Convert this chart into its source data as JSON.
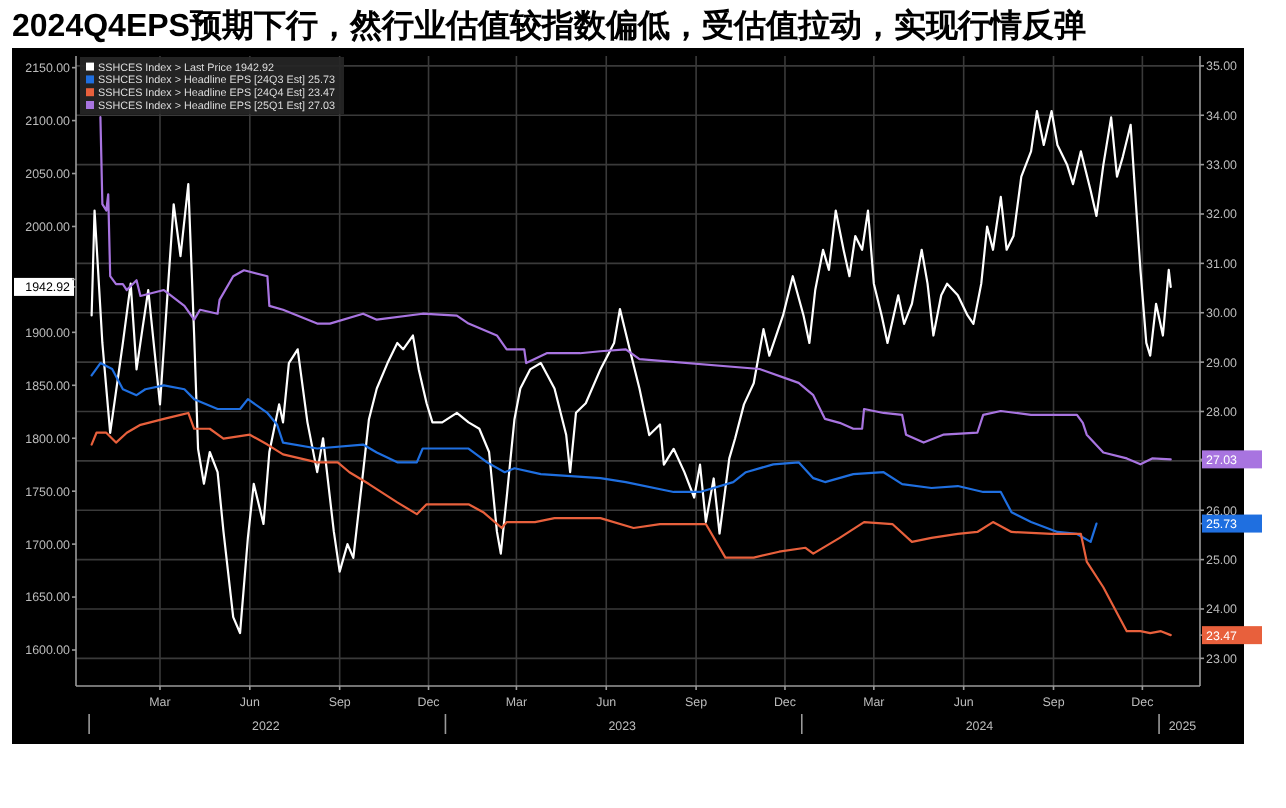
{
  "chart_data": {
    "type": "line",
    "title": "2024Q4EPS预期下行，然行业估值较指数偏低，受估值拉动，实现行情反弹",
    "xlim": [
      "2021-12-19",
      "2025-02-12"
    ],
    "xticks": [
      {
        "value": "2022-03-15",
        "label": "Mar"
      },
      {
        "value": "2022-06-15",
        "label": "Jun"
      },
      {
        "value": "2022-09-15",
        "label": "Sep"
      },
      {
        "value": "2022-12-15",
        "label": "Dec"
      },
      {
        "value": "2023-03-15",
        "label": "Mar"
      },
      {
        "value": "2023-06-15",
        "label": "Jun"
      },
      {
        "value": "2023-09-15",
        "label": "Sep"
      },
      {
        "value": "2023-12-15",
        "label": "Dec"
      },
      {
        "value": "2024-03-15",
        "label": "Mar"
      },
      {
        "value": "2024-06-15",
        "label": "Jun"
      },
      {
        "value": "2024-09-15",
        "label": "Sep"
      },
      {
        "value": "2024-12-15",
        "label": "Dec"
      }
    ],
    "x2lim": [
      "2021-10-14",
      "2025-03-29"
    ],
    "x2ticks": [
      {
        "value": "2022-07-01",
        "label": "2022"
      },
      {
        "value": "2023-07-01",
        "label": "2023"
      },
      {
        "value": "2024-07-01",
        "label": "2024"
      },
      {
        "value": "2025-01-25",
        "label": "2025"
      }
    ],
    "ylim": [
      1566,
      2161
    ],
    "yticks": [
      {
        "value": 1600,
        "label": "1600.00"
      },
      {
        "value": 1650,
        "label": "1650.00"
      },
      {
        "value": 1700,
        "label": "1700.00"
      },
      {
        "value": 1750,
        "label": "1750.00"
      },
      {
        "value": 1800,
        "label": "1800.00"
      },
      {
        "value": 1850,
        "label": "1850.00"
      },
      {
        "value": 1900,
        "label": "1900.00"
      },
      {
        "value": 1942.92,
        "label": "1942.92"
      },
      {
        "value": 1950,
        "label": null
      },
      {
        "value": 2000,
        "label": "2000.00"
      },
      {
        "value": 2050,
        "label": "2050.00"
      },
      {
        "value": 2100,
        "label": "2100.00"
      },
      {
        "value": 2150,
        "label": "2150.00"
      }
    ],
    "y2lim": [
      22.44,
      35.2
    ],
    "y2ticks": [
      {
        "value": 23,
        "label": "23.00"
      },
      {
        "value": 23.47,
        "label": "23.47"
      },
      {
        "value": 24,
        "label": "24.00"
      },
      {
        "value": 25,
        "label": "25.00"
      },
      {
        "value": 25.73,
        "label": "25.73"
      },
      {
        "value": 26,
        "label": "26.00"
      },
      {
        "value": 27,
        "label": null
      },
      {
        "value": 27.03,
        "label": "27.03"
      },
      {
        "value": 28,
        "label": "28.00"
      },
      {
        "value": 29,
        "label": "29.00"
      },
      {
        "value": 30,
        "label": "30.00"
      },
      {
        "value": 31,
        "label": "31.00"
      },
      {
        "value": 32,
        "label": "32.00"
      },
      {
        "value": 33,
        "label": "33.00"
      },
      {
        "value": 34,
        "label": "34.00"
      },
      {
        "value": 35,
        "label": "35.00"
      }
    ],
    "grid": true,
    "legend": "top left",
    "series": [
      {
        "name": "SSHCES Index > Last Price 1942.92",
        "color": "#ffffff",
        "axis": "y",
        "x": [
          "2022-01-04",
          "2022-01-07",
          "2022-01-15",
          "2022-01-23",
          "2022-02-05",
          "2022-02-13",
          "2022-02-19",
          "2022-02-25",
          "2022-03-03",
          "2022-03-15",
          "2022-03-29",
          "2022-04-05",
          "2022-04-13",
          "2022-04-19",
          "2022-04-23",
          "2022-04-29",
          "2022-05-05",
          "2022-05-13",
          "2022-05-19",
          "2022-05-29",
          "2022-06-05",
          "2022-06-13",
          "2022-06-19",
          "2022-06-29",
          "2022-07-05",
          "2022-07-15",
          "2022-07-19",
          "2022-07-25",
          "2022-08-03",
          "2022-08-13",
          "2022-08-23",
          "2022-08-29",
          "2022-09-09",
          "2022-09-15",
          "2022-09-23",
          "2022-09-29",
          "2022-10-09",
          "2022-10-15",
          "2022-10-23",
          "2022-11-03",
          "2022-11-13",
          "2022-11-19",
          "2022-11-29",
          "2022-12-05",
          "2022-12-13",
          "2022-12-19",
          "2022-12-29",
          "2023-01-13",
          "2023-01-25",
          "2023-02-05",
          "2023-02-15",
          "2023-02-23",
          "2023-02-27",
          "2023-03-05",
          "2023-03-13",
          "2023-03-19",
          "2023-03-29",
          "2023-04-09",
          "2023-04-23",
          "2023-05-05",
          "2023-05-09",
          "2023-05-15",
          "2023-05-25",
          "2023-06-09",
          "2023-06-23",
          "2023-06-29",
          "2023-07-09",
          "2023-07-19",
          "2023-07-29",
          "2023-08-09",
          "2023-08-13",
          "2023-08-23",
          "2023-09-03",
          "2023-09-13",
          "2023-09-19",
          "2023-09-25",
          "2023-10-03",
          "2023-10-09",
          "2023-10-19",
          "2023-10-25",
          "2023-11-03",
          "2023-11-13",
          "2023-11-23",
          "2023-11-29",
          "2023-12-13",
          "2023-12-23",
          "2024-01-03",
          "2024-01-09",
          "2024-01-15",
          "2024-01-23",
          "2024-01-29",
          "2024-02-05",
          "2024-02-13",
          "2024-02-19",
          "2024-02-25",
          "2024-03-03",
          "2024-03-09",
          "2024-03-15",
          "2024-03-23",
          "2024-03-29",
          "2024-04-09",
          "2024-04-15",
          "2024-04-23",
          "2024-05-03",
          "2024-05-09",
          "2024-05-15",
          "2024-05-23",
          "2024-05-29",
          "2024-06-09",
          "2024-06-19",
          "2024-06-25",
          "2024-07-03",
          "2024-07-09",
          "2024-07-15",
          "2024-07-23",
          "2024-07-29",
          "2024-08-05",
          "2024-08-13",
          "2024-08-23",
          "2024-08-29",
          "2024-09-05",
          "2024-09-13",
          "2024-09-19",
          "2024-09-29",
          "2024-10-05",
          "2024-10-13",
          "2024-10-23",
          "2024-10-29",
          "2024-11-05",
          "2024-11-13",
          "2024-11-19",
          "2024-11-25",
          "2024-12-03",
          "2024-12-07",
          "2024-12-13",
          "2024-12-19",
          "2024-12-23",
          "2024-12-29",
          "2025-01-05",
          "2025-01-11",
          "2025-01-13"
        ],
        "values": [
          1916,
          2015,
          1890,
          1805,
          1890,
          1946,
          1865,
          1903,
          1940,
          1832,
          2021,
          1972,
          2040,
          1897,
          1790,
          1757,
          1787,
          1768,
          1712,
          1631,
          1616,
          1706,
          1757,
          1719,
          1787,
          1832,
          1815,
          1871,
          1884,
          1815,
          1768,
          1800,
          1712,
          1674,
          1700,
          1687,
          1768,
          1818,
          1847,
          1871,
          1890,
          1884,
          1897,
          1865,
          1833,
          1815,
          1815,
          1824,
          1815,
          1809,
          1787,
          1712,
          1691,
          1744,
          1818,
          1847,
          1865,
          1871,
          1847,
          1803,
          1768,
          1824,
          1833,
          1865,
          1890,
          1922,
          1884,
          1847,
          1803,
          1813,
          1775,
          1790,
          1768,
          1744,
          1775,
          1721,
          1762,
          1710,
          1781,
          1800,
          1832,
          1852,
          1903,
          1878,
          1916,
          1953,
          1916,
          1890,
          1940,
          1978,
          1959,
          2015,
          1978,
          1953,
          1991,
          1978,
          2015,
          1946,
          1916,
          1890,
          1935,
          1908,
          1927,
          1978,
          1946,
          1897,
          1935,
          1946,
          1935,
          1916,
          1908,
          1946,
          2000,
          1978,
          2028,
          1978,
          1991,
          2047,
          2071,
          2109,
          2077,
          2109,
          2077,
          2058,
          2040,
          2071,
          2034,
          2010,
          2058,
          2103,
          2047,
          2066,
          2096,
          2040,
          1959,
          1890,
          1878,
          1927,
          1897,
          1959,
          1942.92
        ]
      },
      {
        "name": "SSHCES Index > Headline EPS [24Q3 Est] 25.73",
        "color": "#1f6fe0",
        "axis": "y2",
        "x": [
          "2022-01-04",
          "2022-01-13",
          "2022-01-25",
          "2022-02-05",
          "2022-02-19",
          "2022-02-28",
          "2022-03-19",
          "2022-04-09",
          "2022-04-19",
          "2022-05-13",
          "2022-06-05",
          "2022-06-13",
          "2022-07-03",
          "2022-07-13",
          "2022-07-19",
          "2022-08-23",
          "2022-10-09",
          "2022-10-23",
          "2022-11-13",
          "2022-12-03",
          "2022-12-09",
          "2023-01-25",
          "2023-02-13",
          "2023-03-03",
          "2023-03-13",
          "2023-04-09",
          "2023-06-09",
          "2023-07-05",
          "2023-08-23",
          "2023-09-19",
          "2023-10-23",
          "2023-11-05",
          "2023-12-03",
          "2023-12-29",
          "2024-01-13",
          "2024-01-25",
          "2024-02-23",
          "2024-03-25",
          "2024-04-13",
          "2024-05-13",
          "2024-06-09",
          "2024-07-05",
          "2024-07-23",
          "2024-08-03",
          "2024-08-23",
          "2024-09-19",
          "2024-10-09",
          "2024-10-23",
          "2024-10-29"
        ],
        "values": [
          28.73,
          28.98,
          28.86,
          28.45,
          28.33,
          28.45,
          28.53,
          28.45,
          28.25,
          28.05,
          28.05,
          28.25,
          27.97,
          27.73,
          27.37,
          27.25,
          27.33,
          27.17,
          26.97,
          26.97,
          27.25,
          27.25,
          26.97,
          26.77,
          26.85,
          26.73,
          26.65,
          26.57,
          26.37,
          26.37,
          26.57,
          26.77,
          26.93,
          26.97,
          26.65,
          26.57,
          26.73,
          26.77,
          26.53,
          26.45,
          26.49,
          26.37,
          26.37,
          25.96,
          25.76,
          25.56,
          25.52,
          25.36,
          25.73
        ]
      },
      {
        "name": "SSHCES Index > Headline EPS [24Q4 Est] 23.47",
        "color": "#e8603c",
        "axis": "y2",
        "x": [
          "2022-01-04",
          "2022-01-09",
          "2022-01-19",
          "2022-01-29",
          "2022-02-09",
          "2022-02-23",
          "2022-03-19",
          "2022-04-05",
          "2022-04-13",
          "2022-04-19",
          "2022-05-05",
          "2022-05-19",
          "2022-06-15",
          "2022-07-03",
          "2022-07-19",
          "2022-08-23",
          "2022-09-13",
          "2022-09-25",
          "2022-10-15",
          "2022-11-13",
          "2022-12-03",
          "2022-12-13",
          "2023-01-25",
          "2023-02-09",
          "2023-02-28",
          "2023-03-05",
          "2023-04-03",
          "2023-04-23",
          "2023-06-03",
          "2023-06-09",
          "2023-07-13",
          "2023-08-09",
          "2023-09-25",
          "2023-10-15",
          "2023-11-13",
          "2023-12-09",
          "2024-01-05",
          "2024-01-13",
          "2024-02-09",
          "2024-03-05",
          "2024-04-03",
          "2024-04-23",
          "2024-05-13",
          "2024-06-09",
          "2024-06-29",
          "2024-07-15",
          "2024-08-03",
          "2024-09-13",
          "2024-10-13",
          "2024-10-19",
          "2024-11-05",
          "2024-11-19",
          "2024-11-29",
          "2024-12-13",
          "2024-12-23",
          "2025-01-03",
          "2025-01-13"
        ],
        "values": [
          27.33,
          27.57,
          27.57,
          27.37,
          27.57,
          27.73,
          27.85,
          27.93,
          27.97,
          27.65,
          27.65,
          27.45,
          27.53,
          27.33,
          27.13,
          26.97,
          26.97,
          26.77,
          26.53,
          26.16,
          25.92,
          26.12,
          26.12,
          25.96,
          25.64,
          25.76,
          25.76,
          25.84,
          25.84,
          25.84,
          25.64,
          25.72,
          25.72,
          25.04,
          25.04,
          25.16,
          25.24,
          25.12,
          25.44,
          25.76,
          25.72,
          25.36,
          25.44,
          25.52,
          25.56,
          25.76,
          25.56,
          25.52,
          25.52,
          24.96,
          24.44,
          23.92,
          23.55,
          23.55,
          23.51,
          23.55,
          23.47
        ]
      },
      {
        "name": "SSHCES Index > Headline EPS [25Q1 Est] 27.03",
        "color": "#a874e0",
        "axis": "y2",
        "x": [
          "2022-01-13",
          "2022-01-15",
          "2022-01-19",
          "2022-01-21",
          "2022-01-23",
          "2022-01-29",
          "2022-02-05",
          "2022-02-09",
          "2022-02-19",
          "2022-02-23",
          "2022-03-19",
          "2022-04-09",
          "2022-04-19",
          "2022-04-25",
          "2022-05-13",
          "2022-05-15",
          "2022-05-29",
          "2022-06-09",
          "2022-07-03",
          "2022-07-05",
          "2022-07-19",
          "2022-08-23",
          "2022-09-05",
          "2022-10-09",
          "2022-10-23",
          "2022-12-09",
          "2023-01-13",
          "2023-01-25",
          "2023-02-23",
          "2023-03-05",
          "2023-03-23",
          "2023-03-25",
          "2023-04-15",
          "2023-05-19",
          "2023-06-09",
          "2023-07-05",
          "2023-07-19",
          "2023-11-19",
          "2023-12-29",
          "2024-01-13",
          "2024-01-25",
          "2024-02-09",
          "2024-02-23",
          "2024-03-03",
          "2024-03-05",
          "2024-03-25",
          "2024-04-13",
          "2024-04-17",
          "2024-05-05",
          "2024-05-25",
          "2024-06-29",
          "2024-07-05",
          "2024-07-23",
          "2024-08-23",
          "2024-10-09",
          "2024-10-15",
          "2024-10-19",
          "2024-11-05",
          "2024-11-29",
          "2024-12-13",
          "2024-12-25",
          "2025-01-13"
        ],
        "values": [
          33.96,
          32.2,
          32.07,
          32.4,
          30.74,
          30.58,
          30.58,
          30.46,
          30.66,
          30.34,
          30.46,
          30.14,
          29.86,
          30.06,
          29.98,
          30.26,
          30.74,
          30.86,
          30.74,
          30.14,
          30.06,
          29.78,
          29.78,
          29.98,
          29.86,
          29.98,
          29.94,
          29.78,
          29.54,
          29.26,
          29.26,
          28.98,
          29.18,
          29.18,
          29.22,
          29.26,
          29.06,
          28.86,
          28.58,
          28.33,
          27.85,
          27.77,
          27.65,
          27.65,
          28.05,
          27.97,
          27.93,
          27.53,
          27.37,
          27.53,
          27.57,
          27.93,
          28.01,
          27.93,
          27.93,
          27.77,
          27.53,
          27.17,
          27.05,
          26.93,
          27.05,
          27.03
        ]
      }
    ]
  }
}
